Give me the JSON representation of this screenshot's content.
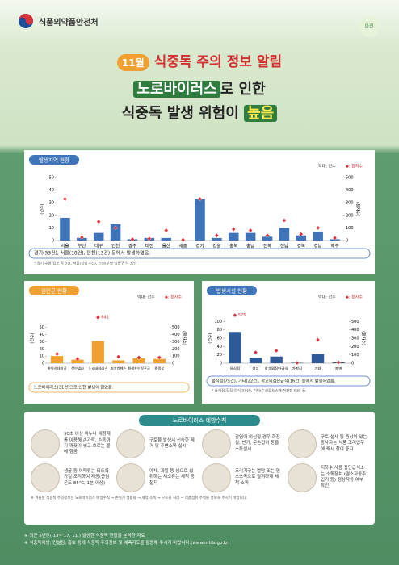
{
  "header": {
    "agency": "식품의약품안전처"
  },
  "title": {
    "month": "11월",
    "line1": "식중독 주의 정보 알림",
    "highlight1": "노로바이러스",
    "line2": "로 인한",
    "line3": "식중독 발생 위험이",
    "highlight2": "높음"
  },
  "chart_data": [
    {
      "type": "bar",
      "title": "발생지역 현황",
      "ylabel": "(건수)",
      "y2label": "(환자수)",
      "categories": [
        "서울",
        "부산",
        "대구",
        "인천",
        "광주",
        "대전",
        "울산",
        "세종",
        "경기",
        "강원",
        "충북",
        "충남",
        "전북",
        "전남",
        "경북",
        "경남",
        "제주"
      ],
      "series": [
        {
          "name": "막대: 건수",
          "type": "bar",
          "color": "#3f74b8",
          "values": [
            18,
            2,
            6,
            13,
            1,
            2,
            2,
            0,
            33,
            2,
            6,
            6,
            3,
            10,
            4,
            7,
            1
          ]
        },
        {
          "name": "◆: 환자수",
          "type": "scatter",
          "axis": "y2",
          "color": "#e0303a",
          "values": [
            330,
            25,
            150,
            100,
            10,
            15,
            80,
            5,
            330,
            40,
            90,
            80,
            40,
            160,
            50,
            100,
            20
          ]
        }
      ],
      "ylim": [
        0,
        50
      ],
      "yticks": [
        0,
        10,
        20,
        30,
        40,
        50
      ],
      "y2lim": [
        0,
        500
      ],
      "y2ticks": [
        0,
        100,
        200,
        300,
        400,
        500
      ],
      "note": "경기(33건), 서울(18건), 인천(13건) 등에서 발생하였음.",
      "footnote": "* 경기 수원·김포 각 5건, 서울(강남 4건), 인천(부평·남동구 각 3건)"
    },
    {
      "type": "bar",
      "title": "원인균 현황",
      "ylabel": "(건수)",
      "y2label": "(환자수)",
      "categories": [
        "병원성대장균",
        "살모넬라",
        "노로바이러스",
        "퍼프린젠스",
        "황색포도상구균",
        "캠필로"
      ],
      "series": [
        {
          "name": "막대: 건수",
          "type": "bar",
          "color": "#f0a030",
          "values": [
            10,
            5,
            31,
            4,
            7,
            6
          ]
        },
        {
          "name": "◆: 환자수",
          "type": "scatter",
          "axis": "y2",
          "color": "#e0303a",
          "values": [
            130,
            60,
            641,
            90,
            80,
            80
          ],
          "value_labels": [
            null,
            null,
            "641",
            null,
            null,
            null
          ]
        }
      ],
      "ylim": [
        0,
        70
      ],
      "yticks": [
        0,
        10,
        20,
        30,
        40,
        50
      ],
      "y2lim": [
        0,
        700
      ],
      "y2ticks": [
        0,
        100,
        200,
        300,
        400,
        500
      ],
      "note": "노로바이러스(31건)으로 인한 발생이 많았음."
    },
    {
      "type": "bar",
      "title": "발생시설 현황",
      "ylabel": "(건수)",
      "y2label": "(환자수)",
      "categories": [
        "음식점",
        "학교",
        "학교외집단급식",
        "가정집",
        "기타",
        "불명"
      ],
      "series": [
        {
          "name": "막대: 건수",
          "type": "bar",
          "color": "#2f5a9a",
          "values": [
            75,
            13,
            16,
            1,
            22,
            2
          ]
        },
        {
          "name": "◆: 환자수",
          "type": "scatter",
          "axis": "y2",
          "color": "#e0303a",
          "values": [
            575,
            130,
            150,
            5,
            280,
            10
          ],
          "value_labels": [
            "575",
            null,
            null,
            null,
            null,
            null
          ]
        }
      ],
      "ylim": [
        0,
        120
      ],
      "yticks": [
        0,
        20,
        40,
        60,
        80,
        100
      ],
      "y2lim": [
        0,
        600
      ],
      "y2ticks": [
        0,
        100,
        200,
        300,
        400,
        500
      ],
      "note": "음식점(75건), 기타(22건), 학교외집단급식(16건) 등에서 발생하였음.",
      "footnote": "* 음식점(횟집 일식 37건), 기타(수산물도소매·직판장 6건) 등"
    }
  ],
  "prevention": {
    "title": "노로바이러스 예방수칙",
    "tips": [
      "30초 이상 비누나 세정제를 이용해 손가락, 손등까지 깨끗이 씻고 흐르는 물에 헹굼",
      "구토물 발생시 신속한 제거 및 주변소독 실시",
      "감염이 의심될 경우 화장실, 변기, 문손잡이 등을 소독실시",
      "구토·설사 등 증상이 있는 종사자는 식품 조리업무에 즉시 참여 중지",
      "생굴 등 어패류는 되도록 가열·조리하여 제공(중심온도 85℃, 1분 이상)",
      "야채, 과일 등 생으로 섭취하는 채소류는 세척 등 철저",
      "조리기구는 열탕 또는 염소소독으로 철저하게 세척·소독",
      "지하수 사용 집단급식소는 소독장치 (염소자동주입기 등) 정상작동 여부 확인"
    ],
    "note": "※ 겨울철 식중독 주의정보는 노로바이러스 예방수칙 → 손씻기 생활화 → 세척·소독 → 구토물 처리 → 식품섭취 주의를 홍보해 주시기 바랍니다."
  },
  "footer": [
    "※ 최근 5년간('13~'17. 11.) 발생한 식중독 현황을 분석한 자료",
    "※ 식중독예방, 컨설팅, 홍보 등에 식중독 주의정보 및 예측지도를 활용해 주시기 바랍니다.(www.mfds.go.kr)"
  ]
}
